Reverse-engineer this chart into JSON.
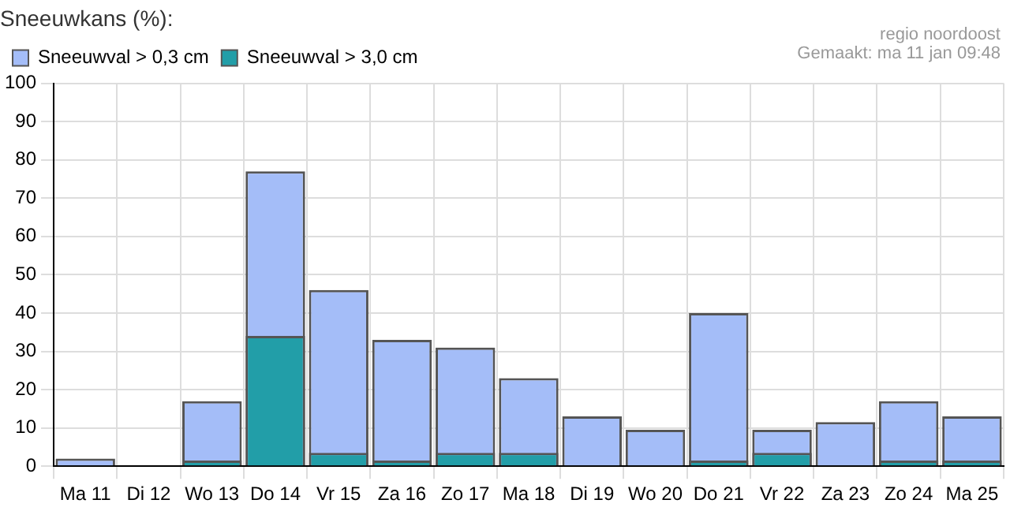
{
  "chart_data": {
    "type": "bar",
    "title": "Sneeuwkans (%):",
    "annotations": [
      "regio noordoost",
      "Gemaakt: ma 11 jan 09:48"
    ],
    "categories": [
      "Ma 11",
      "Di 12",
      "Wo 13",
      "Do 14",
      "Vr 15",
      "Za 16",
      "Zo 17",
      "Ma 18",
      "Di 19",
      "Wo 20",
      "Do 21",
      "Vr 22",
      "Za 23",
      "Zo 24",
      "Ma 25"
    ],
    "series": [
      {
        "name": "Sneeuwval > 0,3 cm",
        "color": "#a4bdf8",
        "values": [
          2,
          0,
          17,
          77,
          46,
          33,
          31,
          23,
          13,
          9.5,
          40,
          9.5,
          11.5,
          17,
          13
        ]
      },
      {
        "name": "Sneeuwval > 3,0 cm",
        "color": "#229ea8",
        "values": [
          0,
          0,
          1.5,
          34,
          3.5,
          1.5,
          3.5,
          3.5,
          0,
          0,
          1.5,
          3.5,
          0,
          1.5,
          1.5
        ]
      }
    ],
    "ylim": [
      0,
      100
    ],
    "yticks": [
      0,
      10,
      20,
      30,
      40,
      50,
      60,
      70,
      80,
      90,
      100
    ],
    "grid": true,
    "legend": "top left"
  }
}
